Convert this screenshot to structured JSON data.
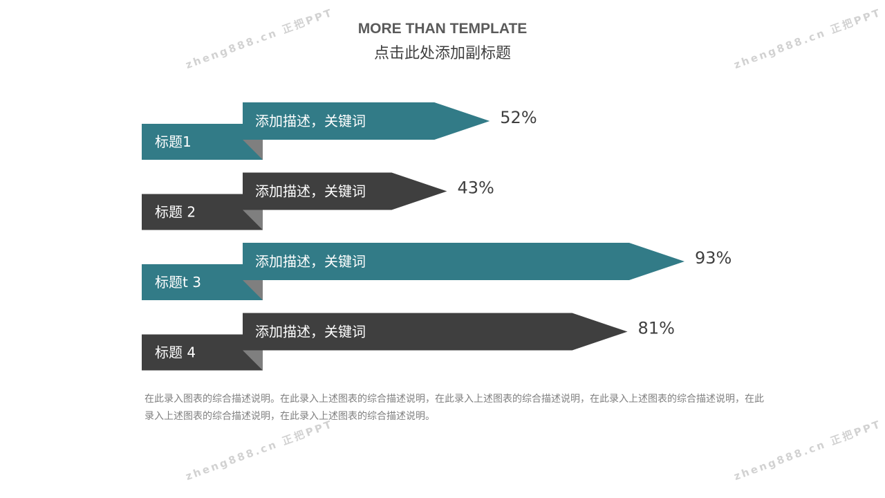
{
  "header": {
    "title": "MORE THAN TEMPLATE",
    "subtitle": "点击此处添加副标题"
  },
  "chart_data": {
    "type": "bar",
    "orientation": "horizontal",
    "categories": [
      "标题1",
      "标题 2",
      "标题t 3",
      "标题 4"
    ],
    "descriptions": [
      "添加描述，关键词",
      "添加描述，关键词",
      "添加描述，关键词",
      "添加描述，关键词"
    ],
    "values": [
      52,
      43,
      93,
      81
    ],
    "value_labels": [
      "52%",
      "43%",
      "93%",
      "81%"
    ],
    "bar_colors": [
      "#327b87",
      "#3f3f3f",
      "#327b87",
      "#3f3f3f"
    ],
    "fold_color": "#7f7f7f",
    "xlim": [
      0,
      100
    ]
  },
  "footer": {
    "description": "在此录入图表的综合描述说明。在此录入上述图表的综合描述说明，在此录入上述图表的综合描述说明，在此录入上述图表的综合描述说明，在此录入上述图表的综合描述说明，在此录入上述图表的综合描述说明。"
  },
  "watermark": {
    "text": "zheng888.cn 正把PPT"
  },
  "colors": {
    "teal": "#327b87",
    "dark": "#3f3f3f",
    "text_gray": "#7f7f7f"
  }
}
